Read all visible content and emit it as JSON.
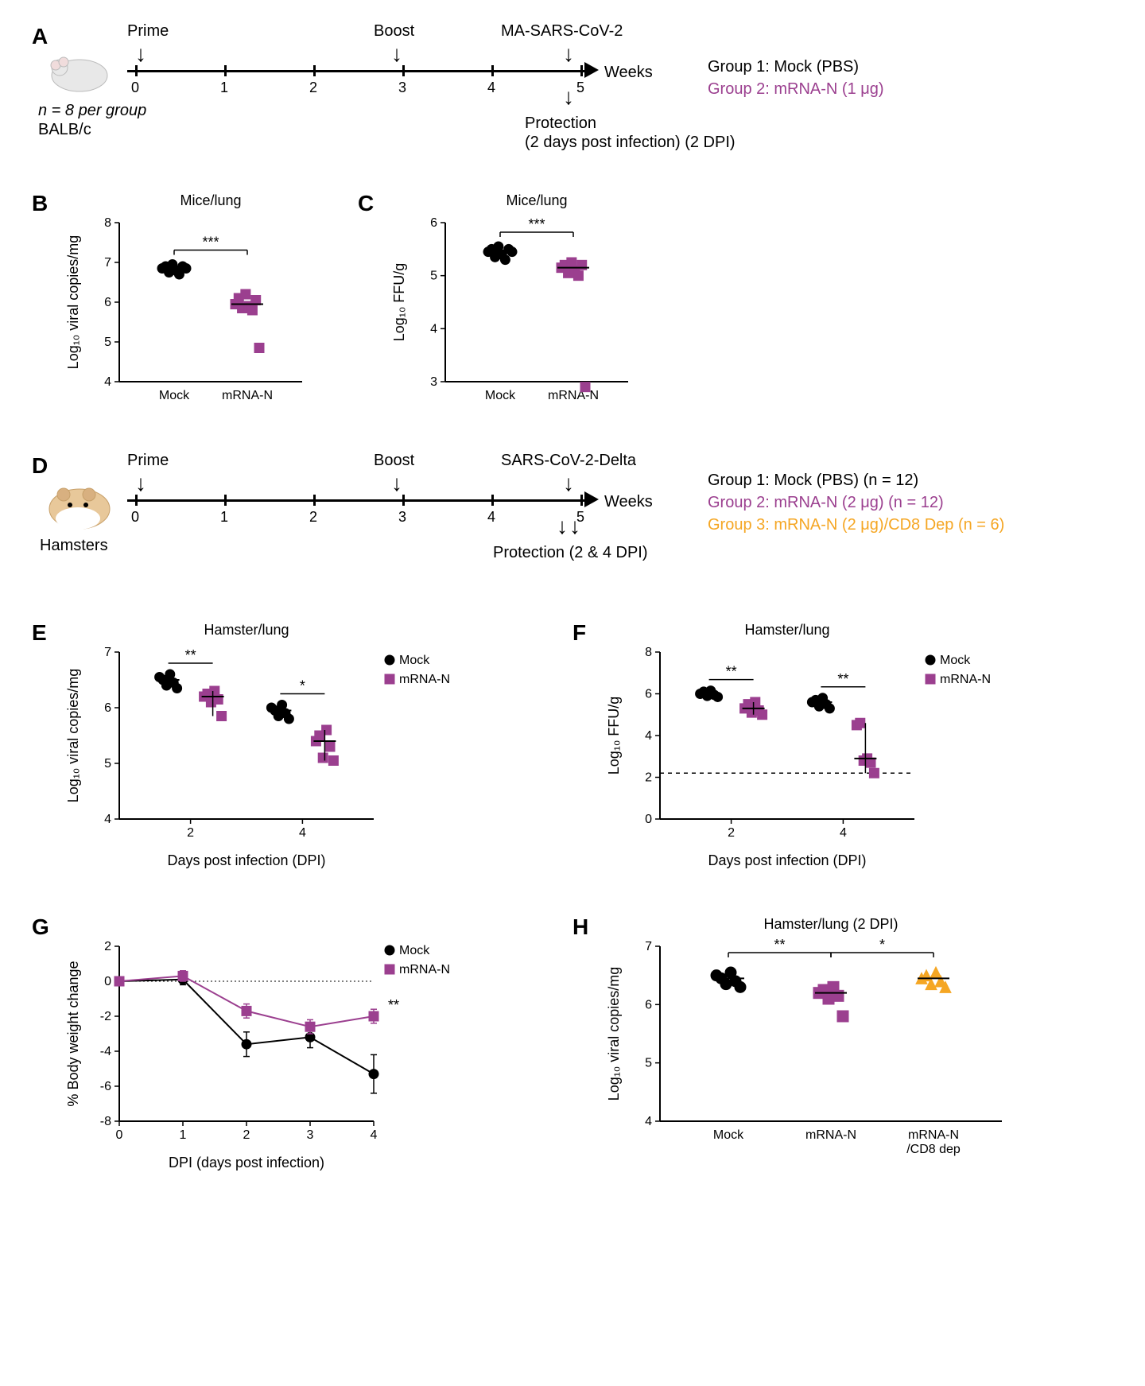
{
  "colors": {
    "mock": "#000000",
    "mrna": "#9b3f8f",
    "cd8dep": "#f5a623",
    "axis": "#000000",
    "bg": "#ffffff"
  },
  "panelA": {
    "label": "A",
    "mouse_caption_line1": "n = 8 per group",
    "mouse_caption_line2": "BALB/c",
    "events": {
      "prime": "Prime",
      "boost": "Boost",
      "challenge": "MA-SARS-CoV-2",
      "weeks": "Weeks",
      "protection_line1": "Protection",
      "protection_line2": "(2 days post infection) (2 DPI)"
    },
    "ticks": [
      "0",
      "1",
      "2",
      "3",
      "4",
      "5"
    ],
    "groups": [
      {
        "text": "Group 1: Mock (PBS)",
        "color": "#000000"
      },
      {
        "text": "Group 2: mRNA-N (1 μg)",
        "color": "#9b3f8f"
      }
    ]
  },
  "panelB": {
    "label": "B",
    "title": "Mice/lung",
    "ylabel": "Log₁₀ viral copies/mg",
    "ylim": [
      4,
      8
    ],
    "yticks": [
      4,
      5,
      6,
      7,
      8
    ],
    "xlabels": [
      "Mock",
      "mRNA-N"
    ],
    "significance": "***",
    "mock_y": [
      6.85,
      6.9,
      6.75,
      6.95,
      6.8,
      6.7,
      6.9,
      6.85
    ],
    "mrna_y": [
      5.95,
      6.1,
      5.85,
      6.2,
      5.9,
      5.8,
      6.05,
      4.85
    ],
    "marker_mock": "circle",
    "marker_mrna": "square",
    "marker_size": 6
  },
  "panelC": {
    "label": "C",
    "title": "Mice/lung",
    "ylabel": "Log₁₀ FFU/g",
    "ylim": [
      3,
      6
    ],
    "yticks": [
      3,
      4,
      5,
      6
    ],
    "xlabels": [
      "Mock",
      "mRNA-N"
    ],
    "significance": "***",
    "mock_y": [
      5.45,
      5.5,
      5.35,
      5.55,
      5.4,
      5.3,
      5.5,
      5.45
    ],
    "mrna_y": [
      5.15,
      5.2,
      5.05,
      5.25,
      5.1,
      5.0,
      5.2,
      2.9
    ],
    "marker_mock": "circle",
    "marker_mrna": "square",
    "marker_size": 6
  },
  "panelD": {
    "label": "D",
    "caption": "Hamsters",
    "events": {
      "prime": "Prime",
      "boost": "Boost",
      "challenge": "SARS-CoV-2-Delta",
      "weeks": "Weeks",
      "protection": "Protection (2 & 4 DPI)"
    },
    "ticks": [
      "0",
      "1",
      "2",
      "3",
      "4",
      "5"
    ],
    "groups": [
      {
        "text": "Group 1: Mock (PBS) (n = 12)",
        "color": "#000000"
      },
      {
        "text": "Group 2: mRNA-N (2 μg) (n = 12)",
        "color": "#9b3f8f"
      },
      {
        "text": "Group 3: mRNA-N (2 μg)/CD8 Dep (n = 6)",
        "color": "#f5a623"
      }
    ]
  },
  "panelE": {
    "label": "E",
    "title": "Hamster/lung",
    "ylabel": "Log₁₀ viral copies/mg",
    "xlabel": "Days post infection (DPI)",
    "ylim": [
      4,
      7
    ],
    "yticks": [
      4,
      5,
      6,
      7
    ],
    "xticks": [
      2,
      4
    ],
    "legend": [
      {
        "name": "Mock",
        "color": "#000000",
        "marker": "circle"
      },
      {
        "name": "mRNA-N",
        "color": "#9b3f8f",
        "marker": "square"
      }
    ],
    "sig": {
      "2": "**",
      "4": "*"
    },
    "data": {
      "2": {
        "mock": [
          6.55,
          6.5,
          6.4,
          6.6,
          6.45,
          6.35
        ],
        "mrna": [
          6.2,
          6.25,
          6.1,
          6.3,
          6.15,
          5.85
        ]
      },
      "4": {
        "mock": [
          6.0,
          5.95,
          5.85,
          6.05,
          5.9,
          5.8
        ],
        "mrna": [
          5.4,
          5.5,
          5.1,
          5.6,
          5.3,
          5.05
        ]
      }
    },
    "marker_size": 6
  },
  "panelF": {
    "label": "F",
    "title": "Hamster/lung",
    "ylabel": "Log₁₀ FFU/g",
    "xlabel": "Days post infection (DPI)",
    "ylim": [
      0,
      8
    ],
    "yticks": [
      0,
      2,
      4,
      6,
      8
    ],
    "xticks": [
      2,
      4
    ],
    "legend": [
      {
        "name": "Mock",
        "color": "#000000",
        "marker": "circle"
      },
      {
        "name": "mRNA-N",
        "color": "#9b3f8f",
        "marker": "square"
      }
    ],
    "sig": {
      "2": "**",
      "4": "**"
    },
    "lod": 2.2,
    "data": {
      "2": {
        "mock": [
          6.0,
          6.1,
          5.9,
          6.15,
          5.95,
          5.85
        ],
        "mrna": [
          5.3,
          5.5,
          5.1,
          5.6,
          5.2,
          5.0
        ]
      },
      "4": {
        "mock": [
          5.6,
          5.7,
          5.4,
          5.8,
          5.5,
          5.3
        ],
        "mrna": [
          4.5,
          4.6,
          2.8,
          2.9,
          2.7,
          2.2
        ]
      }
    },
    "marker_size": 6
  },
  "panelG": {
    "label": "G",
    "ylabel": "% Body weight change",
    "xlabel": "DPI (days post infection)",
    "ylim": [
      -8,
      2
    ],
    "yticks": [
      -8,
      -6,
      -4,
      -2,
      0,
      2
    ],
    "xlim": [
      0,
      4
    ],
    "xticks": [
      0,
      1,
      2,
      3,
      4
    ],
    "sig_at_4": "**",
    "legend": [
      {
        "name": "Mock",
        "color": "#000000",
        "marker": "circle"
      },
      {
        "name": "mRNA-N",
        "color": "#9b3f8f",
        "marker": "square"
      }
    ],
    "series": {
      "mock": {
        "x": [
          0,
          1,
          2,
          3,
          4
        ],
        "y": [
          0,
          0.1,
          -3.6,
          -3.2,
          -5.3
        ],
        "err": [
          0,
          0.3,
          0.7,
          0.6,
          1.1
        ]
      },
      "mrna": {
        "x": [
          0,
          1,
          2,
          3,
          4
        ],
        "y": [
          0,
          0.3,
          -1.7,
          -2.6,
          -2.0
        ],
        "err": [
          0,
          0.3,
          0.4,
          0.4,
          0.4
        ]
      }
    },
    "marker_size": 6
  },
  "panelH": {
    "label": "H",
    "title": "Hamster/lung (2 DPI)",
    "ylabel": "Log₁₀ viral copies/mg",
    "ylim": [
      4,
      7
    ],
    "yticks": [
      4,
      5,
      6,
      7
    ],
    "xlabels": [
      "Mock",
      "mRNA-N",
      "mRNA-N\n/CD8 dep"
    ],
    "sig": {
      "0-1": "**",
      "1-2": "*"
    },
    "data": {
      "mock": {
        "y": [
          6.5,
          6.45,
          6.35,
          6.55,
          6.4,
          6.3
        ],
        "color": "#000000",
        "marker": "circle"
      },
      "mrna": {
        "y": [
          6.2,
          6.25,
          6.1,
          6.3,
          6.15,
          5.8
        ],
        "color": "#9b3f8f",
        "marker": "square"
      },
      "cd8": {
        "y": [
          6.45,
          6.5,
          6.35,
          6.55,
          6.4,
          6.3
        ],
        "color": "#f5a623",
        "marker": "triangle"
      }
    },
    "marker_size": 7
  }
}
